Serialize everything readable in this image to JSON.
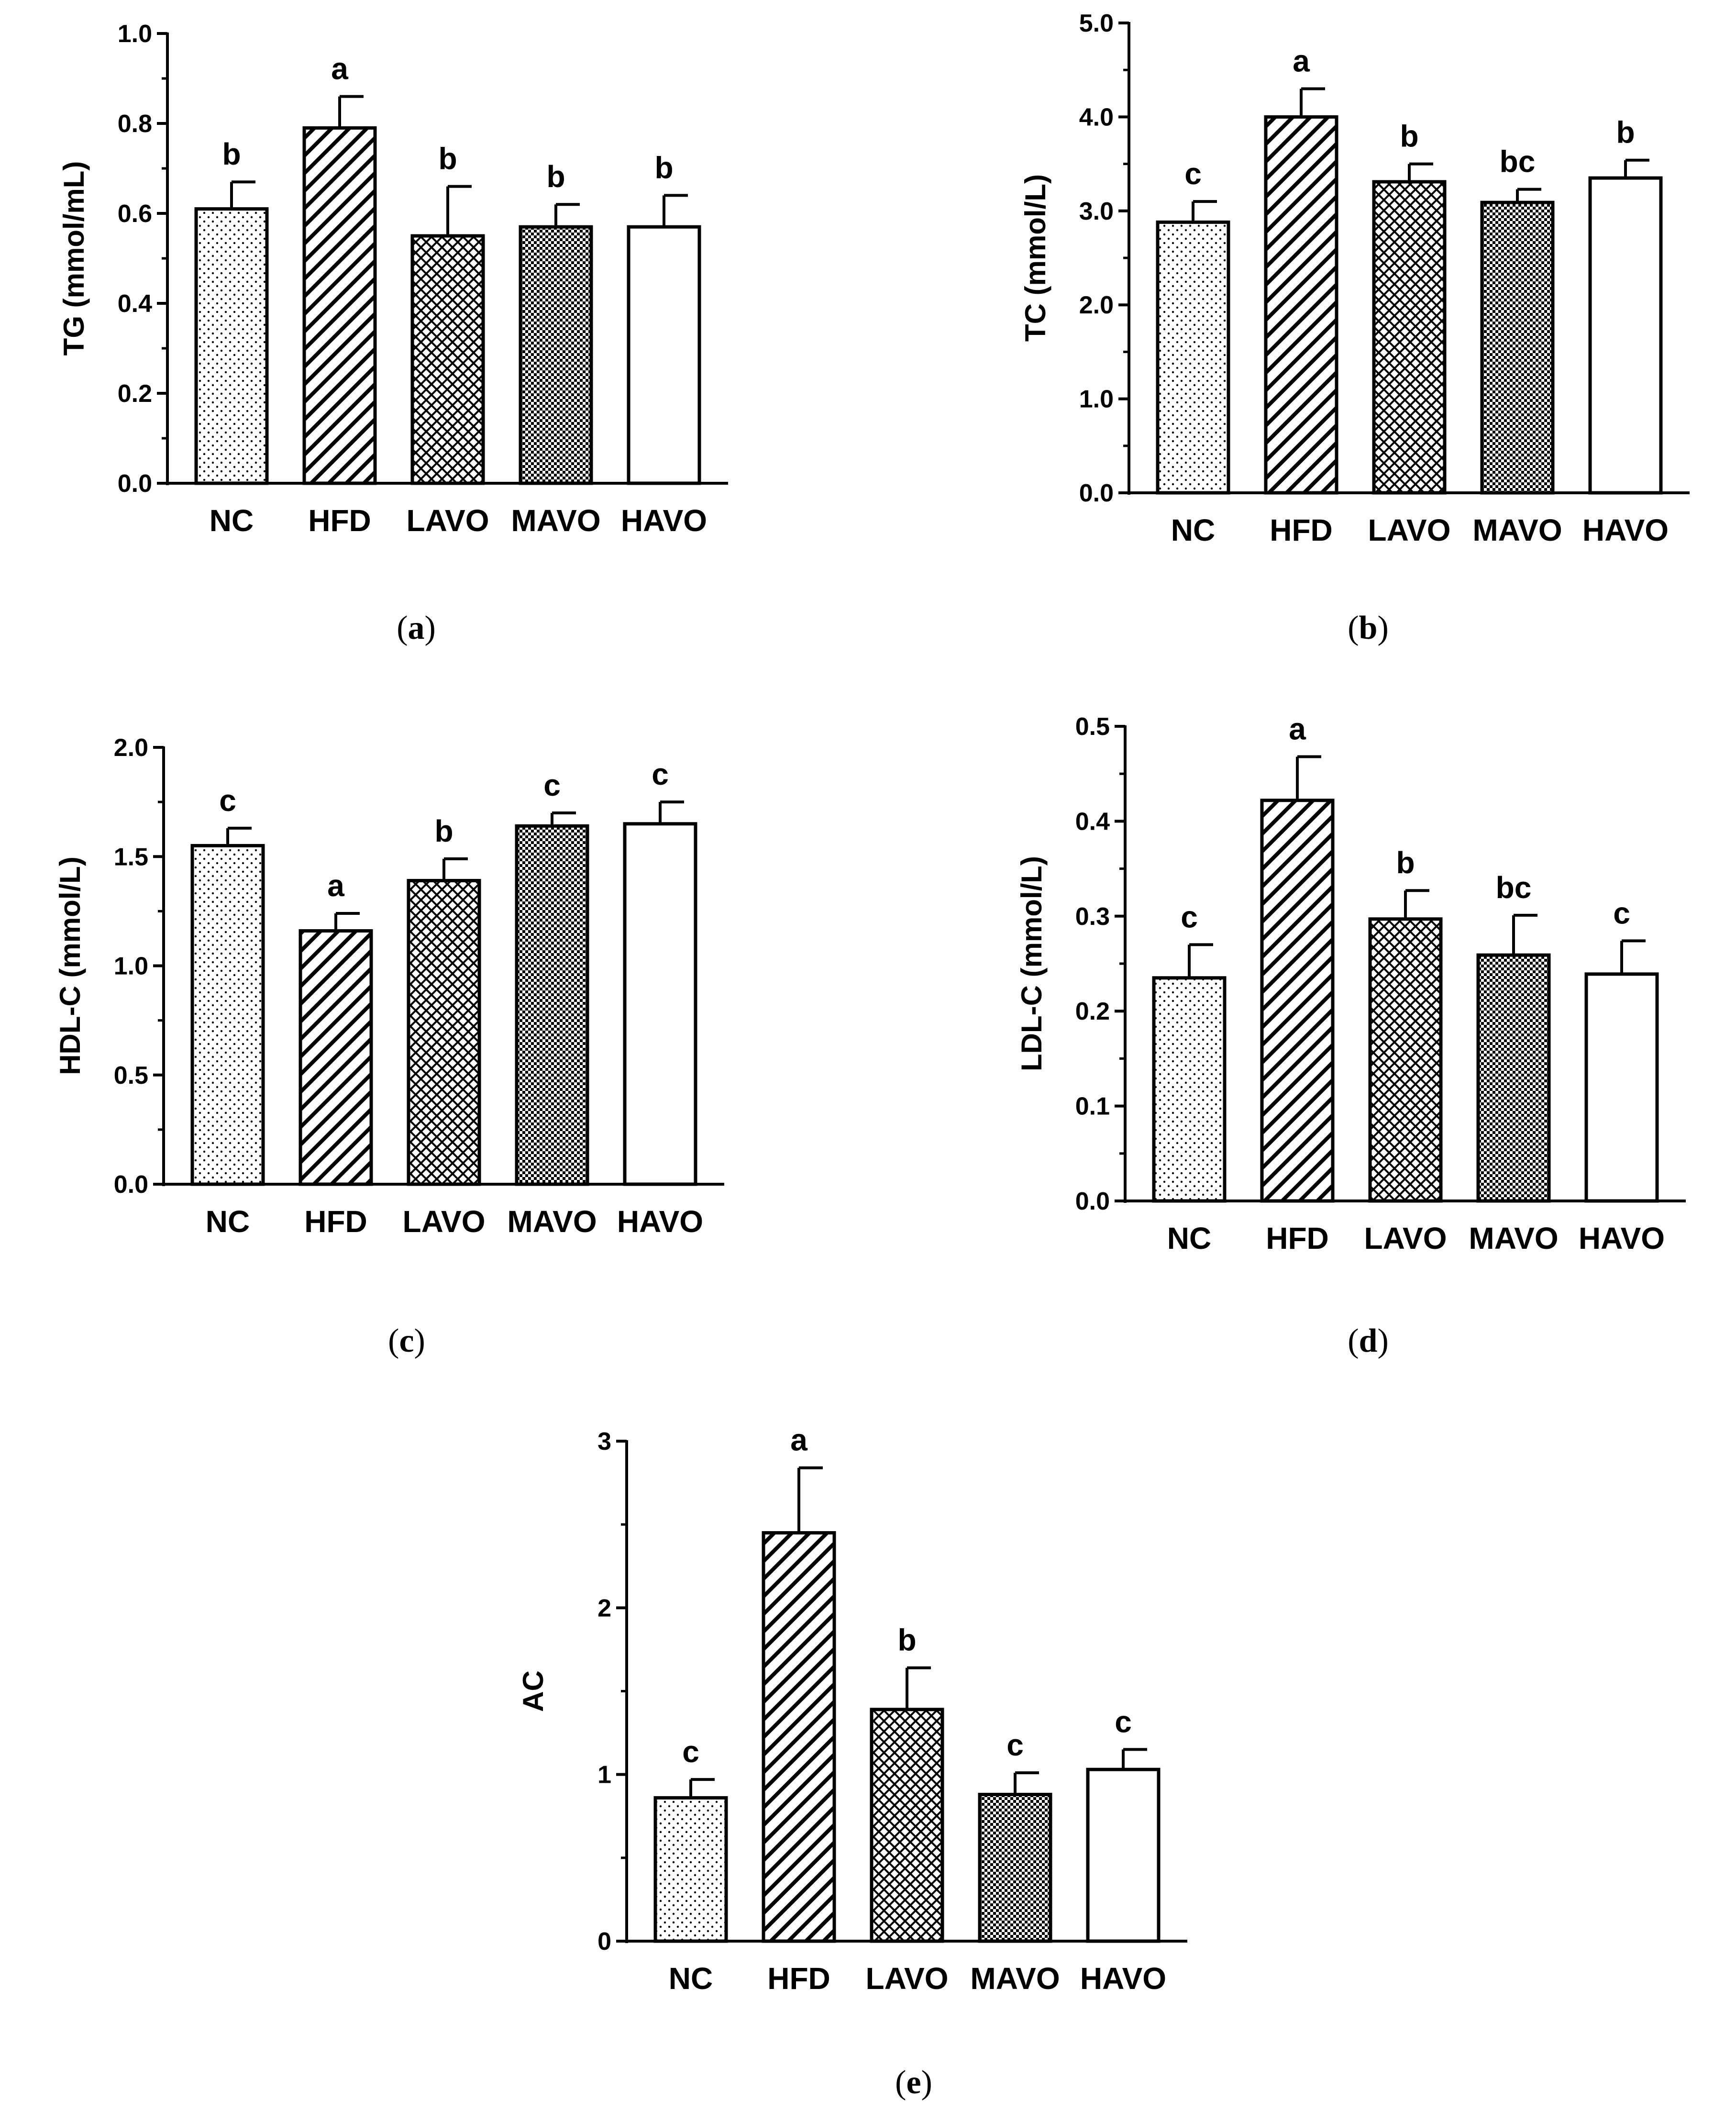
{
  "figure": {
    "panels": [
      {
        "id": "a",
        "caption_label": "(",
        "letter": "a",
        "caption_close": ")"
      },
      {
        "id": "b",
        "caption_label": "(",
        "letter": "b",
        "caption_close": ")"
      },
      {
        "id": "c",
        "caption_label": "(",
        "letter": "c",
        "caption_close": ")"
      },
      {
        "id": "d",
        "caption_label": "(",
        "letter": "d",
        "caption_close": ")"
      },
      {
        "id": "e",
        "caption_label": "(",
        "letter": "e",
        "caption_close": ")"
      }
    ]
  },
  "colors": {
    "bar_stroke": "#000000",
    "bar_fill": "#ffffff"
  },
  "chart_data": [
    {
      "panel": "a",
      "type": "bar",
      "ylabel": "TG (mmol/mL)",
      "categories": [
        "NC",
        "HFD",
        "LAVO",
        "MAVO",
        "HAVO"
      ],
      "patterns": [
        "dots",
        "diagonal",
        "zigzag",
        "checker",
        "none"
      ],
      "values": [
        0.61,
        0.79,
        0.55,
        0.57,
        0.57
      ],
      "errors": [
        0.06,
        0.07,
        0.11,
        0.05,
        0.07
      ],
      "letters": [
        "b",
        "a",
        "b",
        "b",
        "b"
      ],
      "ylim": [
        0,
        1.0
      ],
      "yticks": [
        0.0,
        0.2,
        0.4,
        0.6,
        0.8,
        1.0
      ],
      "ytick_labels": [
        "0.0",
        "0.2",
        "0.4",
        "0.6",
        "0.8",
        "1.0"
      ]
    },
    {
      "panel": "b",
      "type": "bar",
      "ylabel": "TC (mmol/L)",
      "categories": [
        "NC",
        "HFD",
        "LAVO",
        "MAVO",
        "HAVO"
      ],
      "patterns": [
        "dots",
        "diagonal",
        "zigzag",
        "checker",
        "none"
      ],
      "values": [
        2.88,
        4.0,
        3.31,
        3.09,
        3.35
      ],
      "errors": [
        0.22,
        0.3,
        0.19,
        0.14,
        0.19
      ],
      "letters": [
        "c",
        "a",
        "b",
        "bc",
        "b"
      ],
      "ylim": [
        0,
        5.0
      ],
      "yticks": [
        0.0,
        1.0,
        2.0,
        3.0,
        4.0,
        5.0
      ],
      "ytick_labels": [
        "0.0",
        "1.0",
        "2.0",
        "3.0",
        "4.0",
        "5.0"
      ]
    },
    {
      "panel": "c",
      "type": "bar",
      "ylabel": "HDL-C (mmol/L)",
      "categories": [
        "NC",
        "HFD",
        "LAVO",
        "MAVO",
        "HAVO"
      ],
      "patterns": [
        "dots",
        "diagonal",
        "zigzag",
        "checker",
        "none"
      ],
      "values": [
        1.55,
        1.16,
        1.39,
        1.64,
        1.65
      ],
      "errors": [
        0.08,
        0.08,
        0.1,
        0.06,
        0.1
      ],
      "letters": [
        "c",
        "a",
        "b",
        "c",
        "c"
      ],
      "ylim": [
        0,
        2.0
      ],
      "yticks": [
        0.0,
        0.5,
        1.0,
        1.5,
        2.0
      ],
      "ytick_labels": [
        "0.0",
        "0.5",
        "1.0",
        "1.5",
        "2.0"
      ]
    },
    {
      "panel": "d",
      "type": "bar",
      "ylabel": "LDL-C (mmol/L)",
      "categories": [
        "NC",
        "HFD",
        "LAVO",
        "MAVO",
        "HAVO"
      ],
      "patterns": [
        "dots",
        "diagonal",
        "zigzag",
        "checker",
        "none"
      ],
      "values": [
        0.235,
        0.422,
        0.297,
        0.259,
        0.239
      ],
      "errors": [
        0.035,
        0.046,
        0.03,
        0.042,
        0.035
      ],
      "letters": [
        "c",
        "a",
        "b",
        "bc",
        "c"
      ],
      "ylim": [
        0,
        0.5
      ],
      "yticks": [
        0.0,
        0.1,
        0.2,
        0.3,
        0.4,
        0.5
      ],
      "ytick_labels": [
        "0.0",
        "0.1",
        "0.2",
        "0.3",
        "0.4",
        "0.5"
      ]
    },
    {
      "panel": "e",
      "type": "bar",
      "ylabel": "AC",
      "categories": [
        "NC",
        "HFD",
        "LAVO",
        "MAVO",
        "HAVO"
      ],
      "patterns": [
        "dots",
        "diagonal",
        "zigzag",
        "checker",
        "none"
      ],
      "values": [
        0.86,
        2.45,
        1.39,
        0.88,
        1.03
      ],
      "errors": [
        0.11,
        0.39,
        0.25,
        0.13,
        0.12
      ],
      "letters": [
        "c",
        "a",
        "b",
        "c",
        "c"
      ],
      "ylim": [
        0,
        3
      ],
      "yticks": [
        0,
        1,
        2,
        3
      ],
      "ytick_labels": [
        "0",
        "1",
        "2",
        "3"
      ]
    }
  ]
}
